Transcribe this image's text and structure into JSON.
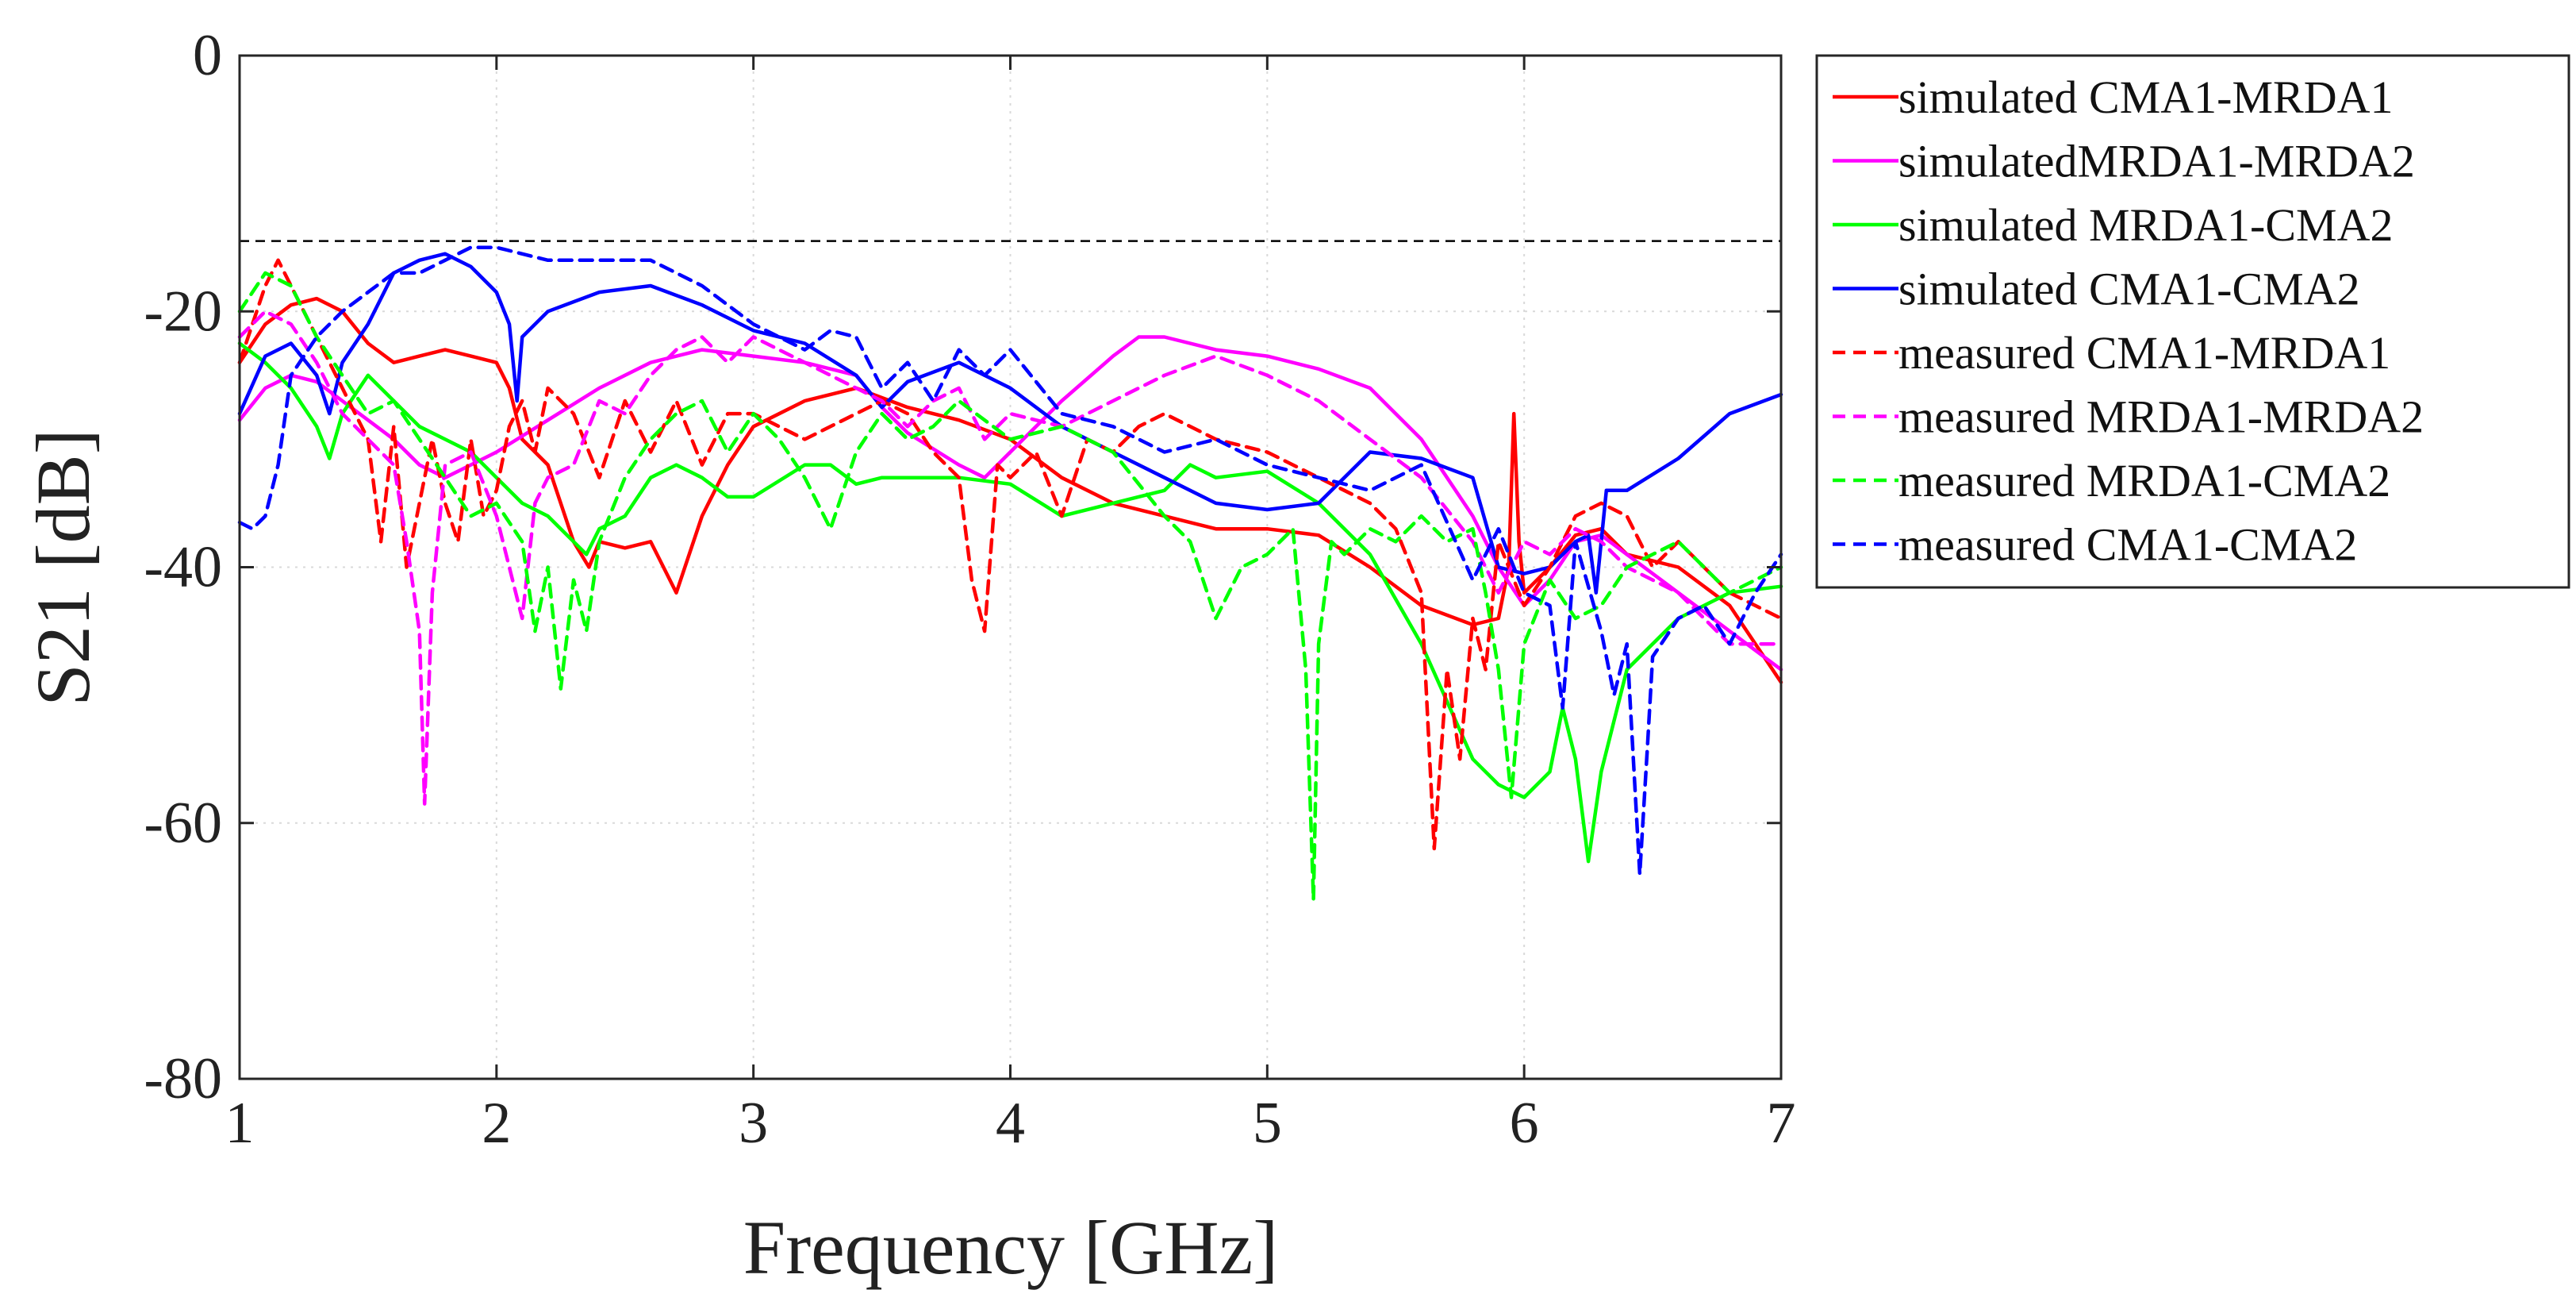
{
  "chart_data": {
    "type": "line",
    "xlabel": "Frequency [GHz]",
    "ylabel": "S21 [dB]",
    "xlim": [
      1,
      7
    ],
    "ylim": [
      -80,
      0
    ],
    "xticks": [
      1,
      2,
      3,
      4,
      5,
      6,
      7
    ],
    "xtick_labels": [
      "1",
      "2",
      "3",
      "4",
      "5",
      "6",
      "7"
    ],
    "yticks": [
      -80,
      -60,
      -40,
      -20,
      0
    ],
    "ytick_labels": [
      "-80",
      "-60",
      "-40",
      "-20",
      "0"
    ],
    "grid": true,
    "legend_position": "outside-right-top",
    "reference_line": {
      "y": -14.5,
      "color": "#000000",
      "style": "dashed"
    },
    "series": [
      {
        "name": "simulated CMA1-MRDA1",
        "color": "#ff0000",
        "style": "solid",
        "x": [
          1.0,
          1.1,
          1.2,
          1.3,
          1.4,
          1.5,
          1.6,
          1.7,
          1.8,
          1.9,
          2.0,
          2.05,
          2.1,
          2.2,
          2.3,
          2.36,
          2.4,
          2.5,
          2.6,
          2.7,
          2.8,
          2.9,
          3.0,
          3.2,
          3.4,
          3.6,
          3.8,
          4.0,
          4.2,
          4.4,
          4.6,
          4.8,
          5.0,
          5.2,
          5.4,
          5.6,
          5.8,
          5.9,
          5.94,
          5.96,
          5.98,
          6.0,
          6.1,
          6.2,
          6.3,
          6.4,
          6.6,
          6.8,
          7.0
        ],
        "y": [
          -24,
          -21,
          -19.5,
          -19,
          -20,
          -22.5,
          -24,
          -23.5,
          -23,
          -23.5,
          -24,
          -26,
          -30,
          -32,
          -38,
          -40,
          -38,
          -38.5,
          -38,
          -42,
          -36,
          -32,
          -29,
          -27,
          -26,
          -27.5,
          -28.5,
          -30,
          -33,
          -35,
          -36,
          -37,
          -37,
          -37.5,
          -40,
          -43,
          -44.5,
          -44,
          -40,
          -28,
          -38,
          -42,
          -40,
          -37.5,
          -37,
          -39,
          -40,
          -43,
          -49
        ]
      },
      {
        "name": "simulatedMRDA1-MRDA2",
        "color": "#ff00ff",
        "style": "solid",
        "x": [
          1.0,
          1.1,
          1.2,
          1.3,
          1.4,
          1.5,
          1.6,
          1.7,
          1.8,
          1.9,
          2.0,
          2.2,
          2.4,
          2.6,
          2.8,
          3.0,
          3.2,
          3.4,
          3.5,
          3.6,
          3.8,
          3.9,
          4.0,
          4.2,
          4.4,
          4.5,
          4.6,
          4.8,
          5.0,
          5.2,
          5.4,
          5.6,
          5.8,
          5.9,
          6.0,
          6.1,
          6.2,
          6.3,
          6.4,
          6.6,
          6.8,
          7.0
        ],
        "y": [
          -28.5,
          -26,
          -25,
          -25.5,
          -27,
          -28.5,
          -30,
          -32,
          -33,
          -32,
          -31,
          -28.5,
          -26,
          -24,
          -23,
          -23.5,
          -24,
          -25,
          -27.5,
          -29.5,
          -32,
          -33,
          -31,
          -27,
          -23.5,
          -22,
          -22,
          -23,
          -23.5,
          -24.5,
          -26,
          -30,
          -36,
          -40,
          -43,
          -41,
          -38,
          -37.5,
          -39,
          -42,
          -45,
          -48
        ]
      },
      {
        "name": "simulated MRDA1-CMA2",
        "color": "#00ff00",
        "style": "solid",
        "x": [
          1.0,
          1.1,
          1.2,
          1.3,
          1.35,
          1.4,
          1.5,
          1.6,
          1.7,
          1.8,
          1.9,
          2.0,
          2.1,
          2.2,
          2.3,
          2.35,
          2.4,
          2.5,
          2.6,
          2.7,
          2.8,
          2.9,
          3.0,
          3.2,
          3.3,
          3.4,
          3.5,
          3.6,
          3.8,
          4.0,
          4.2,
          4.4,
          4.6,
          4.7,
          4.8,
          5.0,
          5.2,
          5.4,
          5.6,
          5.8,
          5.9,
          6.0,
          6.1,
          6.15,
          6.2,
          6.25,
          6.3,
          6.4,
          6.6,
          6.8,
          7.0
        ],
        "y": [
          -22.5,
          -24,
          -26,
          -29,
          -31.5,
          -28,
          -25,
          -27,
          -29,
          -30,
          -31,
          -33,
          -35,
          -36,
          -38,
          -39,
          -37,
          -36,
          -33,
          -32,
          -33,
          -34.5,
          -34.5,
          -32,
          -32,
          -33.5,
          -33,
          -33,
          -33,
          -33.5,
          -36,
          -35,
          -34,
          -32,
          -33,
          -32.5,
          -35,
          -39,
          -46,
          -55,
          -57,
          -58,
          -56,
          -51,
          -55,
          -63,
          -56,
          -48,
          -44,
          -42,
          -41.5
        ]
      },
      {
        "name": "simulated CMA1-CMA2",
        "color": "#0000ff",
        "style": "solid",
        "x": [
          1.0,
          1.1,
          1.2,
          1.3,
          1.35,
          1.4,
          1.5,
          1.6,
          1.7,
          1.8,
          1.9,
          2.0,
          2.05,
          2.08,
          2.1,
          2.2,
          2.4,
          2.6,
          2.8,
          3.0,
          3.2,
          3.4,
          3.5,
          3.6,
          3.8,
          4.0,
          4.2,
          4.4,
          4.6,
          4.8,
          5.0,
          5.2,
          5.4,
          5.6,
          5.8,
          5.9,
          6.0,
          6.1,
          6.2,
          6.25,
          6.28,
          6.3,
          6.32,
          6.4,
          6.6,
          6.8,
          7.0
        ],
        "y": [
          -28,
          -23.5,
          -22.5,
          -25,
          -28,
          -24,
          -21,
          -17,
          -16,
          -15.5,
          -16.5,
          -18.5,
          -21,
          -27,
          -22,
          -20,
          -18.5,
          -18,
          -19.5,
          -21.5,
          -22.5,
          -25,
          -27.5,
          -25.5,
          -24,
          -26,
          -29,
          -31,
          -33,
          -35,
          -35.5,
          -35,
          -31,
          -31.5,
          -33,
          -40,
          -40.5,
          -40,
          -38,
          -37.5,
          -42,
          -38,
          -34,
          -34,
          -31.5,
          -28,
          -26.5
        ]
      },
      {
        "name": "measured CMA1-MRDA1",
        "color": "#ff0000",
        "style": "dashed",
        "x": [
          1.0,
          1.1,
          1.15,
          1.2,
          1.25,
          1.3,
          1.4,
          1.5,
          1.55,
          1.6,
          1.65,
          1.7,
          1.75,
          1.8,
          1.85,
          1.9,
          1.95,
          2.0,
          2.05,
          2.1,
          2.15,
          2.2,
          2.3,
          2.4,
          2.5,
          2.6,
          2.7,
          2.8,
          2.9,
          3.0,
          3.2,
          3.4,
          3.5,
          3.6,
          3.7,
          3.8,
          3.85,
          3.9,
          3.95,
          4.0,
          4.1,
          4.2,
          4.3,
          4.4,
          4.5,
          4.6,
          4.8,
          5.0,
          5.2,
          5.4,
          5.5,
          5.6,
          5.65,
          5.7,
          5.75,
          5.8,
          5.85,
          5.9,
          6.0,
          6.1,
          6.2,
          6.3,
          6.4,
          6.5,
          6.6,
          6.8,
          7.0
        ],
        "y": [
          -24,
          -18,
          -16,
          -18,
          -20,
          -22,
          -26,
          -30,
          -38,
          -29,
          -40,
          -35,
          -30,
          -35,
          -38,
          -30,
          -36,
          -34,
          -29,
          -27,
          -31,
          -26,
          -28,
          -33,
          -27,
          -31,
          -27,
          -32,
          -28,
          -28,
          -30,
          -28,
          -27,
          -28,
          -31,
          -33,
          -41,
          -45,
          -32,
          -33,
          -31,
          -36,
          -30,
          -31,
          -29,
          -28,
          -30,
          -31,
          -33,
          -35,
          -37,
          -42,
          -62,
          -48,
          -55,
          -44,
          -48,
          -38,
          -43,
          -40,
          -36,
          -35,
          -36,
          -40,
          -38,
          -42,
          -44
        ]
      },
      {
        "name": "measured MRDA1-MRDA2",
        "color": "#ff00ff",
        "style": "dashed",
        "x": [
          1.0,
          1.1,
          1.2,
          1.3,
          1.4,
          1.5,
          1.6,
          1.65,
          1.7,
          1.72,
          1.75,
          1.8,
          1.9,
          2.0,
          2.1,
          2.15,
          2.2,
          2.3,
          2.4,
          2.5,
          2.6,
          2.7,
          2.8,
          2.9,
          3.0,
          3.2,
          3.4,
          3.5,
          3.6,
          3.7,
          3.8,
          3.9,
          4.0,
          4.2,
          4.4,
          4.6,
          4.8,
          5.0,
          5.2,
          5.4,
          5.6,
          5.8,
          5.9,
          6.0,
          6.1,
          6.2,
          6.3,
          6.4,
          6.6,
          6.8,
          7.0
        ],
        "y": [
          -22,
          -20,
          -21,
          -24,
          -28,
          -30,
          -32,
          -38,
          -45,
          -58.5,
          -42,
          -32,
          -31,
          -36,
          -44,
          -35,
          -33,
          -32,
          -27,
          -28,
          -25,
          -23,
          -22,
          -24,
          -22,
          -24,
          -26,
          -27,
          -29,
          -27,
          -26,
          -30,
          -28,
          -29,
          -27,
          -25,
          -23.5,
          -25,
          -27,
          -30,
          -33,
          -38,
          -42,
          -38,
          -39,
          -37,
          -38,
          -40,
          -42,
          -46,
          -46
        ]
      },
      {
        "name": "measured MRDA1-CMA2",
        "color": "#00ff00",
        "style": "dashed",
        "x": [
          1.0,
          1.1,
          1.2,
          1.3,
          1.4,
          1.5,
          1.6,
          1.7,
          1.8,
          1.9,
          2.0,
          2.1,
          2.15,
          2.2,
          2.25,
          2.3,
          2.35,
          2.4,
          2.5,
          2.6,
          2.7,
          2.8,
          2.9,
          3.0,
          3.1,
          3.2,
          3.3,
          3.4,
          3.5,
          3.6,
          3.7,
          3.8,
          4.0,
          4.2,
          4.4,
          4.6,
          4.7,
          4.8,
          4.9,
          5.0,
          5.1,
          5.15,
          5.18,
          5.2,
          5.25,
          5.3,
          5.4,
          5.5,
          5.6,
          5.7,
          5.8,
          5.85,
          5.9,
          5.95,
          6.0,
          6.1,
          6.2,
          6.3,
          6.4,
          6.6,
          6.8,
          7.0
        ],
        "y": [
          -20,
          -17,
          -18,
          -22,
          -25,
          -28,
          -27,
          -30,
          -33,
          -36,
          -35,
          -38,
          -45,
          -40,
          -49.5,
          -41,
          -45,
          -38,
          -33,
          -30,
          -28,
          -27,
          -31,
          -28,
          -30,
          -33,
          -37,
          -31,
          -28,
          -30,
          -29,
          -27,
          -30,
          -29,
          -31,
          -36,
          -38,
          -44,
          -40,
          -39,
          -37,
          -48,
          -66,
          -46,
          -38,
          -39,
          -37,
          -38,
          -36,
          -38,
          -37,
          -42,
          -48,
          -58,
          -46,
          -41,
          -44,
          -43,
          -40,
          -38,
          -42,
          -40
        ]
      },
      {
        "name": "measured CMA1-CMA2",
        "color": "#0000ff",
        "style": "dashed",
        "x": [
          1.0,
          1.05,
          1.1,
          1.15,
          1.2,
          1.3,
          1.4,
          1.5,
          1.6,
          1.7,
          1.8,
          1.9,
          2.0,
          2.2,
          2.4,
          2.6,
          2.8,
          3.0,
          3.2,
          3.3,
          3.4,
          3.5,
          3.6,
          3.7,
          3.8,
          3.9,
          4.0,
          4.2,
          4.4,
          4.6,
          4.8,
          5.0,
          5.2,
          5.4,
          5.6,
          5.8,
          5.9,
          6.0,
          6.1,
          6.15,
          6.2,
          6.3,
          6.35,
          6.4,
          6.45,
          6.48,
          6.5,
          6.6,
          6.7,
          6.8,
          6.9,
          7.0
        ],
        "y": [
          -36.5,
          -37,
          -36,
          -32,
          -25,
          -22,
          -20,
          -18.5,
          -17,
          -17,
          -16,
          -15,
          -15,
          -16,
          -16,
          -16,
          -18,
          -21,
          -23,
          -21.5,
          -22,
          -26,
          -24,
          -27,
          -23,
          -25,
          -23,
          -28,
          -29,
          -31,
          -30,
          -32,
          -33,
          -34,
          -32,
          -41,
          -37,
          -42,
          -43,
          -51,
          -38,
          -45,
          -50,
          -46,
          -64,
          -54,
          -47,
          -44,
          -43,
          -46,
          -42,
          -39
        ]
      }
    ]
  }
}
